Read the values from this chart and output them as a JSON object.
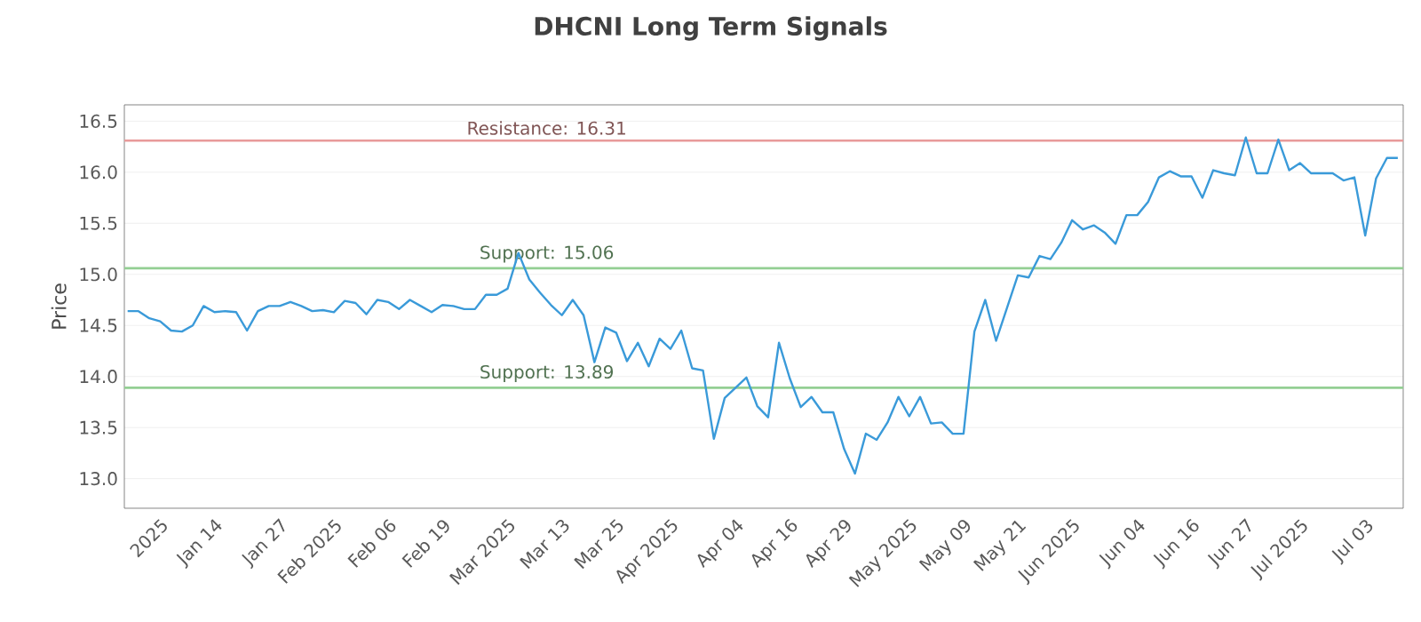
{
  "chart_data": {
    "type": "line",
    "title": "DHCNI Long Term Signals",
    "ylabel": "Price",
    "categories": [
      null,
      null,
      null,
      "2025",
      null,
      null,
      null,
      null,
      "Jan 14",
      null,
      null,
      null,
      null,
      null,
      "Jan 27",
      null,
      null,
      null,
      null,
      "Feb 2025",
      null,
      null,
      null,
      null,
      "Feb 06",
      null,
      null,
      null,
      null,
      "Feb 19",
      null,
      null,
      null,
      null,
      null,
      "Mar 2025",
      null,
      null,
      null,
      null,
      "Mar 13",
      null,
      null,
      null,
      null,
      "Mar 25",
      null,
      null,
      null,
      null,
      "Apr 2025",
      null,
      null,
      null,
      null,
      null,
      "Apr 04",
      null,
      null,
      null,
      null,
      "Apr 16",
      null,
      null,
      null,
      null,
      "Apr 29",
      null,
      null,
      null,
      null,
      null,
      "May 2025",
      null,
      null,
      null,
      null,
      "May 09",
      null,
      null,
      null,
      null,
      "May 21",
      null,
      null,
      null,
      null,
      "Jun 2025",
      null,
      null,
      null,
      null,
      null,
      "Jun 04",
      null,
      null,
      null,
      null,
      "Jun 16",
      null,
      null,
      null,
      null,
      "Jun 27",
      null,
      null,
      null,
      null,
      "Jul 2025",
      null,
      null,
      null,
      null,
      null,
      "Jul 03",
      null,
      null,
      null
    ],
    "series": [
      {
        "color": "#3a9ad9",
        "values": [
          14.64,
          14.64,
          14.57,
          14.54,
          14.45,
          14.44,
          14.5,
          14.69,
          14.63,
          14.64,
          14.63,
          14.45,
          14.64,
          14.69,
          14.69,
          14.73,
          14.69,
          14.64,
          14.65,
          14.63,
          14.74,
          14.72,
          14.61,
          14.75,
          14.73,
          14.66,
          14.75,
          14.69,
          14.63,
          14.7,
          14.69,
          14.66,
          14.66,
          14.8,
          14.8,
          14.86,
          15.21,
          14.95,
          14.82,
          14.7,
          14.6,
          14.75,
          14.6,
          14.14,
          14.48,
          14.43,
          14.15,
          14.33,
          14.1,
          14.37,
          14.27,
          14.45,
          14.08,
          14.06,
          13.39,
          13.79,
          13.89,
          13.99,
          13.71,
          13.6,
          14.33,
          13.98,
          13.7,
          13.8,
          13.65,
          13.65,
          13.29,
          13.05,
          13.44,
          13.38,
          13.55,
          13.8,
          13.61,
          13.8,
          13.54,
          13.55,
          13.44,
          13.44,
          14.44,
          14.75,
          14.35,
          14.67,
          14.99,
          14.97,
          15.18,
          15.15,
          15.31,
          15.53,
          15.44,
          15.48,
          15.41,
          15.3,
          15.58,
          15.58,
          15.71,
          15.95,
          16.01,
          15.96,
          15.96,
          15.75,
          16.02,
          15.99,
          15.97,
          16.34,
          15.99,
          15.99,
          16.32,
          16.02,
          16.09,
          15.99,
          15.99,
          15.99,
          15.92,
          15.95,
          15.38,
          15.94,
          16.14,
          16.14
        ]
      }
    ],
    "ylim": [
      12.71,
      16.66
    ],
    "yticks": [
      {
        "value": 13,
        "label": "13.0"
      },
      {
        "value": 13.5,
        "label": "13.5"
      },
      {
        "value": 14,
        "label": "14.0"
      },
      {
        "value": 14.5,
        "label": "14.5"
      },
      {
        "value": 15,
        "label": "15.0"
      },
      {
        "value": 15.5,
        "label": "15.5"
      },
      {
        "value": 16,
        "label": "16.0"
      },
      {
        "value": 16.5,
        "label": "16.5"
      }
    ],
    "grid": "y",
    "marker": "none",
    "line_style": "solid",
    "ref_lines": [
      {
        "axis": "y",
        "value": 16.31,
        "label": "Resistance: 16.31",
        "color": "#e89a9a"
      },
      {
        "axis": "y",
        "value": 15.06,
        "label": "Support: 15.06",
        "color": "#93cf93"
      },
      {
        "axis": "y",
        "value": 13.89,
        "label": "Support: 13.89",
        "color": "#93cf93"
      }
    ]
  }
}
